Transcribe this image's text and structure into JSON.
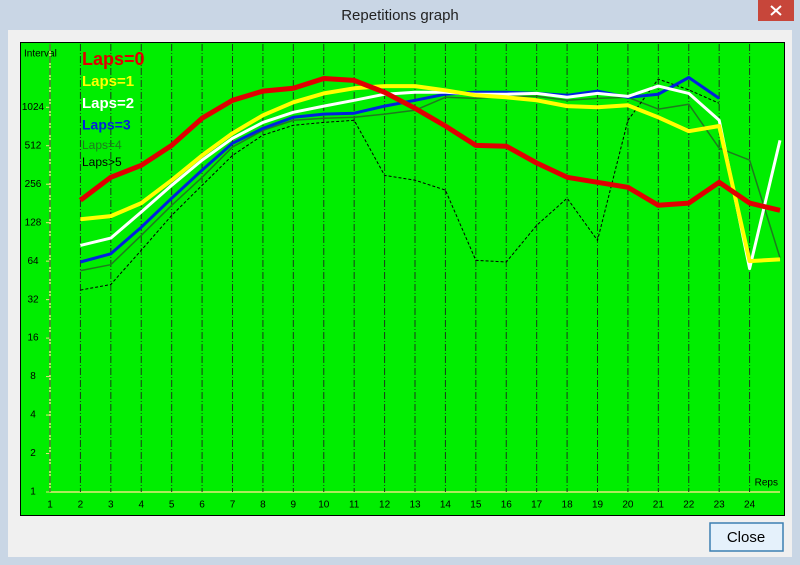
{
  "window": {
    "title": "Repetitions graph"
  },
  "buttons": {
    "close": "Close"
  },
  "chart_data": {
    "type": "line",
    "y_label": "Interval",
    "x_label": "Reps",
    "yscale": "log2",
    "xlim": [
      1,
      25
    ],
    "ylim": [
      1,
      3200
    ],
    "xticks": [
      1,
      2,
      3,
      4,
      5,
      6,
      7,
      8,
      9,
      10,
      11,
      12,
      13,
      14,
      15,
      16,
      17,
      18,
      19,
      20,
      21,
      22,
      23,
      24
    ],
    "yticks": [
      1,
      2,
      4,
      8,
      16,
      32,
      64,
      128,
      256,
      512,
      1024
    ],
    "grid": "x",
    "background": "#00ee00",
    "x": [
      2,
      3,
      4,
      5,
      6,
      7,
      8,
      9,
      10,
      11,
      12,
      13,
      14,
      15,
      16,
      17,
      18,
      19,
      20,
      21,
      22,
      23,
      24,
      25
    ],
    "series": [
      {
        "name": "Laps=0",
        "color": "#e00000",
        "line_width": 5,
        "dash": false,
        "values": [
          192,
          290,
          360,
          515,
          840,
          1160,
          1370,
          1440,
          1720,
          1660,
          1340,
          1005,
          730,
          515,
          508,
          375,
          290,
          265,
          242,
          175,
          182,
          265,
          182,
          160
        ]
      },
      {
        "name": "Laps=1",
        "color": "#ffff00",
        "line_width": 4,
        "dash": false,
        "values": [
          136,
          144,
          182,
          275,
          430,
          640,
          885,
          1120,
          1315,
          1440,
          1500,
          1500,
          1390,
          1270,
          1225,
          1160,
          1045,
          1024,
          1060,
          855,
          665,
          730,
          64,
          66
        ]
      },
      {
        "name": "Laps=2",
        "color": "#ffffff",
        "line_width": 3,
        "dash": false,
        "values": [
          85,
          97,
          155,
          251,
          395,
          585,
          780,
          935,
          1045,
          1160,
          1295,
          1340,
          1340,
          1295,
          1295,
          1315,
          1225,
          1315,
          1245,
          1500,
          1315,
          810,
          56,
          565
        ]
      },
      {
        "name": "Laps=3",
        "color": "#0022dd",
        "line_width": 3,
        "dash": false,
        "values": [
          63,
          73,
          118,
          199,
          330,
          535,
          700,
          855,
          905,
          920,
          1045,
          1160,
          1295,
          1340,
          1340,
          1315,
          1270,
          1370,
          1225,
          1295,
          1750,
          1200,
          null,
          null
        ]
      },
      {
        "name": "Laps=4",
        "color": "#1f7a1f",
        "line_width": 1.5,
        "dash": false,
        "values": [
          54,
          60,
          102,
          175,
          290,
          500,
          675,
          810,
          840,
          855,
          905,
          970,
          1225,
          1200,
          1245,
          1245,
          1160,
          1200,
          1225,
          990,
          1080,
          490,
          395,
          68
        ]
      },
      {
        "name": "Laps>5",
        "color": "#000000",
        "line_width": 1,
        "dash": true,
        "values": [
          38,
          42,
          78,
          146,
          251,
          430,
          620,
          740,
          780,
          810,
          300,
          275,
          230,
          65,
          63,
          122,
          199,
          93,
          810,
          1700,
          1400,
          1100,
          null,
          null
        ]
      }
    ]
  }
}
